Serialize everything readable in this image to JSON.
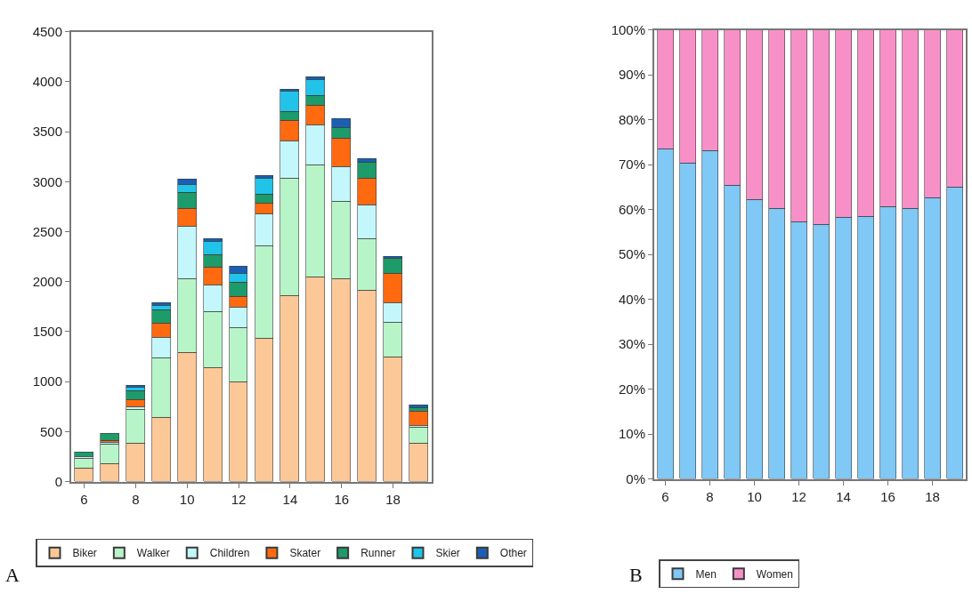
{
  "chart_data": [
    {
      "type": "bar",
      "stacked": true,
      "x": [
        6,
        7,
        8,
        9,
        10,
        11,
        12,
        13,
        14,
        15,
        16,
        17,
        18,
        19
      ],
      "xlim": [
        5.5,
        19.5
      ],
      "xticks": [
        6,
        8,
        10,
        12,
        14,
        16,
        18
      ],
      "ylim": [
        0,
        4500
      ],
      "yticks": [
        0,
        500,
        1000,
        1500,
        2000,
        2500,
        3000,
        3500,
        4000,
        4500
      ],
      "legend": "bottom",
      "annotations": [
        "A"
      ],
      "series": [
        {
          "name": "Biker",
          "color": "#fcc897",
          "values": [
            130,
            180,
            380,
            640,
            1290,
            1140,
            1000,
            1430,
            1860,
            2050,
            2030,
            1910,
            1250,
            380
          ]
        },
        {
          "name": "Walker",
          "color": "#b7f5c8",
          "values": [
            100,
            190,
            340,
            600,
            740,
            560,
            540,
            930,
            1170,
            1120,
            770,
            520,
            340,
            160
          ]
        },
        {
          "name": "Children",
          "color": "#c4f7fb",
          "values": [
            20,
            20,
            30,
            200,
            520,
            270,
            200,
            320,
            380,
            400,
            350,
            340,
            200,
            20
          ]
        },
        {
          "name": "Skater",
          "color": "#ff6a10",
          "values": [
            null,
            20,
            70,
            140,
            180,
            170,
            110,
            100,
            200,
            190,
            280,
            260,
            290,
            140
          ]
        },
        {
          "name": "Runner",
          "color": "#1e9b6a",
          "values": [
            40,
            70,
            90,
            140,
            160,
            130,
            140,
            90,
            90,
            100,
            110,
            160,
            150,
            40
          ]
        },
        {
          "name": "Skier",
          "color": "#22c3e8",
          "values": [
            null,
            null,
            30,
            40,
            80,
            130,
            90,
            160,
            200,
            160,
            null,
            null,
            null,
            null
          ]
        },
        {
          "name": "Other",
          "color": "#1a5fb4",
          "values": [
            null,
            null,
            20,
            30,
            50,
            30,
            70,
            30,
            20,
            30,
            90,
            40,
            20,
            30
          ]
        }
      ]
    },
    {
      "type": "bar",
      "stacked": true,
      "x": [
        6,
        7,
        8,
        9,
        10,
        11,
        12,
        13,
        14,
        15,
        16,
        17,
        18,
        19
      ],
      "xlim": [
        5.5,
        19.5
      ],
      "xticks": [
        6,
        8,
        10,
        12,
        14,
        16,
        18
      ],
      "ylim": [
        0,
        100
      ],
      "yticks": [
        {
          "value": 0,
          "label": "0%"
        },
        {
          "value": 10,
          "label": "10%"
        },
        {
          "value": 20,
          "label": "20%"
        },
        {
          "value": 30,
          "label": "30%"
        },
        {
          "value": 40,
          "label": "40%"
        },
        {
          "value": 50,
          "label": "50%"
        },
        {
          "value": 60,
          "label": "60%"
        },
        {
          "value": 70,
          "label": "70%"
        },
        {
          "value": 80,
          "label": "80%"
        },
        {
          "value": 90,
          "label": "90%"
        },
        {
          "value": 100,
          "label": "100%"
        }
      ],
      "legend": "bottom",
      "annotations": [
        "B"
      ],
      "series": [
        {
          "name": "Men",
          "color": "#80c8f5",
          "values": [
            73.5,
            70.3,
            73,
            65.3,
            62.2,
            60.2,
            57.2,
            56.7,
            58.3,
            58.5,
            60.6,
            60.2,
            62.6,
            64.9
          ]
        },
        {
          "name": "Women",
          "color": "#f890c8",
          "values": [
            26.5,
            29.7,
            27,
            34.7,
            37.8,
            39.8,
            42.8,
            43.3,
            41.7,
            41.5,
            39.4,
            39.8,
            37.4,
            35.1
          ]
        }
      ]
    }
  ]
}
